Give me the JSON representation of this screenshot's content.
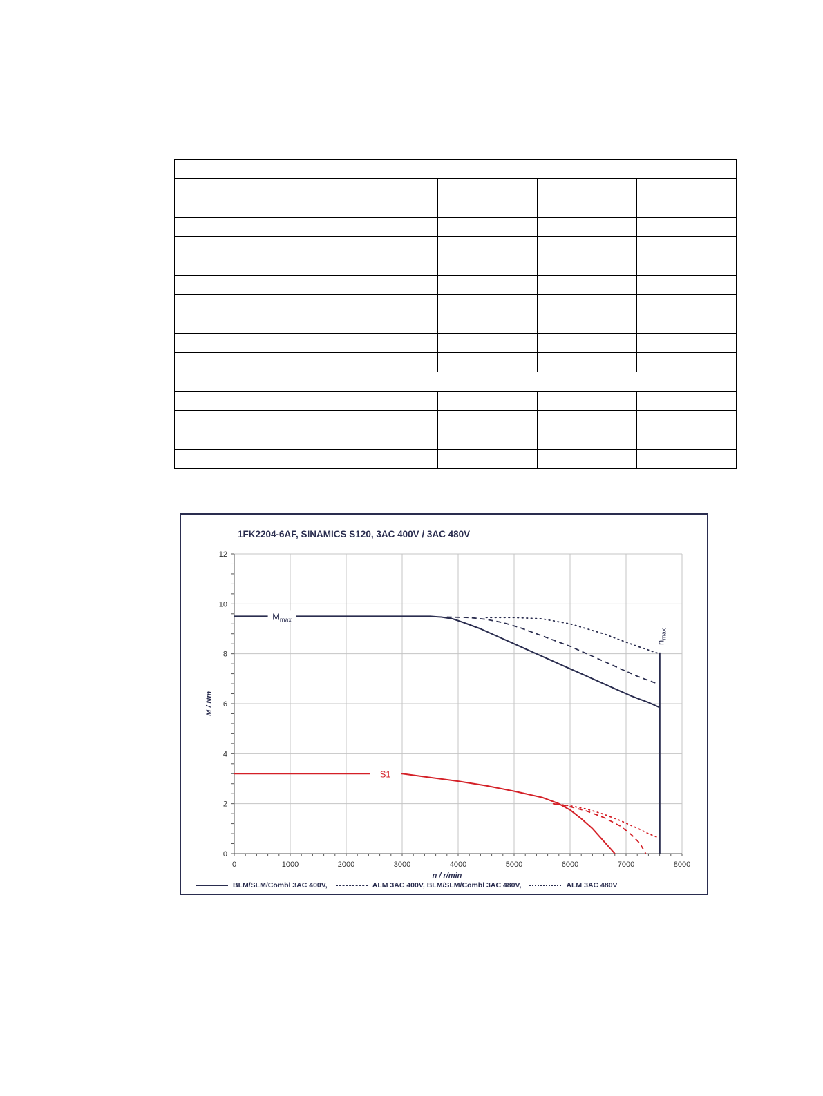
{
  "chart_data": {
    "type": "line",
    "title": "1FK2204-6AF,  SINAMICS S120,  3AC 400V / 3AC 480V",
    "xlabel": "n / r/min",
    "ylabel": "M / Nm",
    "xlim": [
      0,
      8000
    ],
    "ylim": [
      0,
      12
    ],
    "xticks": [
      0,
      1000,
      2000,
      3000,
      4000,
      5000,
      6000,
      7000,
      8000
    ],
    "yticks": [
      0,
      2,
      4,
      6,
      8,
      10,
      12
    ],
    "grid": true,
    "legend_position": "bottom",
    "colors": {
      "mmax": "#2a2d4f",
      "s1": "#d42027",
      "axis": "#555555",
      "grid": "#c4c4c4"
    },
    "legend": [
      {
        "label": "BLM/SLM/Combl 3AC 400V,",
        "style": "solid"
      },
      {
        "label": "ALM 3AC 400V, BLM/SLM/Combl 3AC 480V,",
        "style": "dashed"
      },
      {
        "label": "ALM 3AC 480V",
        "style": "dotted"
      }
    ],
    "annotations": {
      "mmax": "M",
      "mmax_sub": "max",
      "s1": "S1",
      "nmax": "n",
      "nmax_sub": "max",
      "nmax_value": 7600
    },
    "series": [
      {
        "group": "mmax",
        "style": "solid",
        "x": [
          0,
          3500,
          3700,
          3900,
          4100,
          4400,
          4700,
          5000,
          5300,
          5600,
          5900,
          6200,
          6500,
          6800,
          7100,
          7400,
          7600
        ],
        "y": [
          9.5,
          9.5,
          9.47,
          9.4,
          9.25,
          9.0,
          8.7,
          8.4,
          8.1,
          7.8,
          7.5,
          7.2,
          6.9,
          6.6,
          6.3,
          6.05,
          5.85
        ]
      },
      {
        "group": "mmax",
        "style": "dashed",
        "x": [
          3800,
          4200,
          4500,
          4800,
          5100,
          5400,
          5700,
          6000,
          6300,
          6600,
          6900,
          7200,
          7500,
          7600
        ],
        "y": [
          9.47,
          9.45,
          9.38,
          9.25,
          9.05,
          8.8,
          8.55,
          8.3,
          8.0,
          7.7,
          7.4,
          7.1,
          6.85,
          6.8
        ]
      },
      {
        "group": "mmax",
        "style": "dotted",
        "x": [
          4500,
          5000,
          5500,
          6000,
          6300,
          6600,
          6900,
          7200,
          7400,
          7600
        ],
        "y": [
          9.45,
          9.45,
          9.4,
          9.2,
          9.0,
          8.8,
          8.55,
          8.3,
          8.15,
          8.0
        ]
      },
      {
        "group": "s1",
        "style": "solid",
        "x": [
          0,
          3000,
          3500,
          4000,
          4500,
          5000,
          5500,
          5800,
          6000,
          6200,
          6400,
          6600,
          6800
        ],
        "y": [
          3.2,
          3.2,
          3.05,
          2.9,
          2.72,
          2.5,
          2.25,
          2.0,
          1.75,
          1.4,
          1.0,
          0.5,
          0.0
        ]
      },
      {
        "group": "s1",
        "style": "dashed",
        "x": [
          5700,
          6000,
          6300,
          6600,
          6900,
          7100,
          7250,
          7350
        ],
        "y": [
          2.0,
          1.88,
          1.7,
          1.45,
          1.1,
          0.75,
          0.4,
          0.0
        ]
      },
      {
        "group": "s1",
        "style": "dotted",
        "x": [
          5700,
          6000,
          6300,
          6600,
          6900,
          7200,
          7400,
          7600
        ],
        "y": [
          2.0,
          1.92,
          1.78,
          1.58,
          1.32,
          1.02,
          0.8,
          0.62
        ]
      }
    ]
  }
}
